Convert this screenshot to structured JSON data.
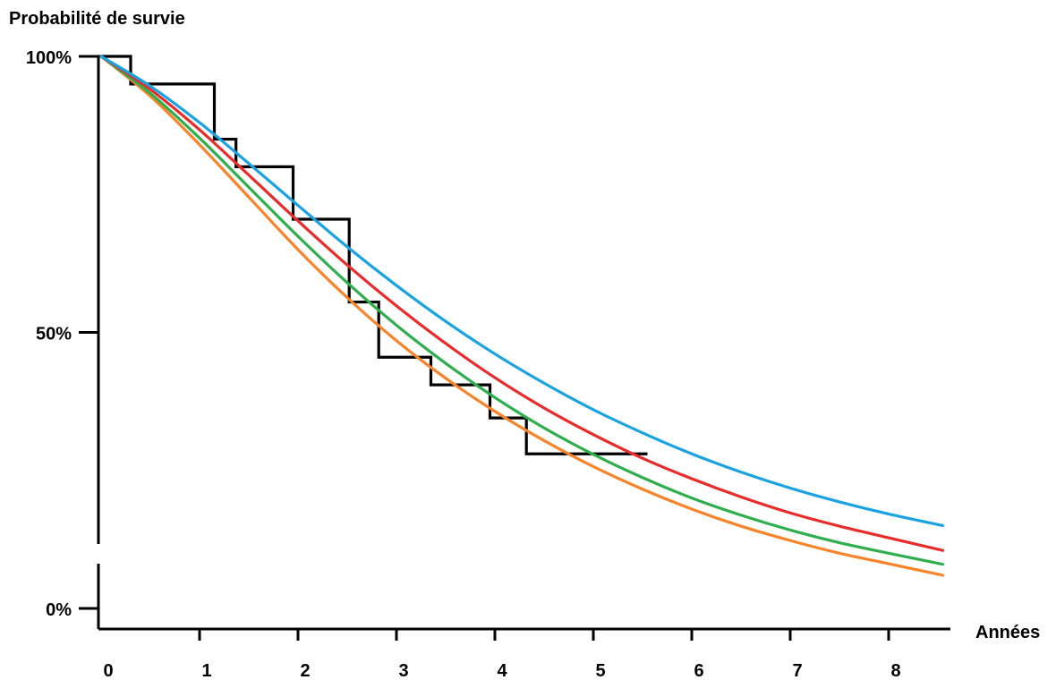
{
  "chart_data": {
    "type": "line",
    "title": "",
    "ylabel": "Probabilité de survie",
    "xlabel": "Années",
    "xlim": [
      -0.2,
      8.55
    ],
    "ylim": [
      0,
      100
    ],
    "x_ticks": [
      0,
      1,
      2,
      3,
      4,
      5,
      6,
      7,
      8
    ],
    "x_tick_labels": [
      "0",
      "1",
      "2",
      "3",
      "4",
      "5",
      "6",
      "7",
      "8"
    ],
    "y_ticks": [
      0,
      50,
      100
    ],
    "y_tick_labels": [
      "0%",
      "50%",
      "100%"
    ],
    "grid": false,
    "legend": "none",
    "step_series": {
      "color": "#000000",
      "points": [
        [
          -0.03,
          100
        ],
        [
          0.3,
          100
        ],
        [
          0.3,
          95
        ],
        [
          1.15,
          95
        ],
        [
          1.15,
          85
        ],
        [
          1.37,
          85
        ],
        [
          1.37,
          80
        ],
        [
          1.95,
          80
        ],
        [
          1.95,
          70.5
        ],
        [
          2.52,
          70.5
        ],
        [
          2.52,
          55.5
        ],
        [
          2.82,
          55.5
        ],
        [
          2.82,
          45.5
        ],
        [
          3.35,
          45.5
        ],
        [
          3.35,
          40.5
        ],
        [
          3.95,
          40.5
        ],
        [
          3.95,
          34.5
        ],
        [
          4.32,
          34.5
        ],
        [
          4.32,
          28
        ],
        [
          5.55,
          28
        ]
      ]
    },
    "series": [
      {
        "color": "#1aa3e0",
        "x": [
          0,
          0.5,
          1,
          1.5,
          2,
          2.5,
          3,
          3.5,
          4,
          4.5,
          5,
          5.5,
          6,
          6.5,
          7,
          7.5,
          8,
          8.55
        ],
        "values": [
          100,
          94.6,
          88,
          80.6,
          73,
          65.5,
          58.5,
          52,
          46.1,
          40.8,
          36,
          31.8,
          28,
          24.7,
          21.8,
          19.3,
          17.1,
          15
        ]
      },
      {
        "color": "#e82c2c",
        "x": [
          0,
          0.5,
          1,
          1.5,
          2,
          2.5,
          3,
          3.5,
          4,
          4.5,
          5,
          5.5,
          6,
          6.5,
          7,
          7.5,
          8,
          8.55
        ],
        "values": [
          100,
          94,
          86.7,
          78.5,
          70.2,
          62.2,
          54.8,
          48,
          41.8,
          36.3,
          31.5,
          27.2,
          23.5,
          20.2,
          17.3,
          14.9,
          12.8,
          10.5
        ]
      },
      {
        "color": "#2fae4e",
        "x": [
          0,
          0.5,
          1,
          1.5,
          2,
          2.5,
          3,
          3.5,
          4,
          4.5,
          5,
          5.5,
          6,
          6.5,
          7,
          7.5,
          8,
          8.55
        ],
        "values": [
          100,
          93.3,
          85.2,
          76.3,
          67.4,
          59,
          51.3,
          44.4,
          38.2,
          32.7,
          27.9,
          23.7,
          20,
          16.9,
          14.2,
          11.9,
          10,
          8
        ]
      },
      {
        "color": "#f7842a",
        "x": [
          0,
          0.5,
          1,
          1.5,
          2,
          2.5,
          3,
          3.5,
          4,
          4.5,
          5,
          5.5,
          6,
          6.5,
          7,
          7.5,
          8,
          8.55
        ],
        "values": [
          100,
          92.8,
          84,
          74.5,
          65,
          56.3,
          48.5,
          41.7,
          35.7,
          30.4,
          25.7,
          21.6,
          18,
          14.9,
          12.3,
          10,
          8.1,
          6
        ]
      }
    ]
  }
}
